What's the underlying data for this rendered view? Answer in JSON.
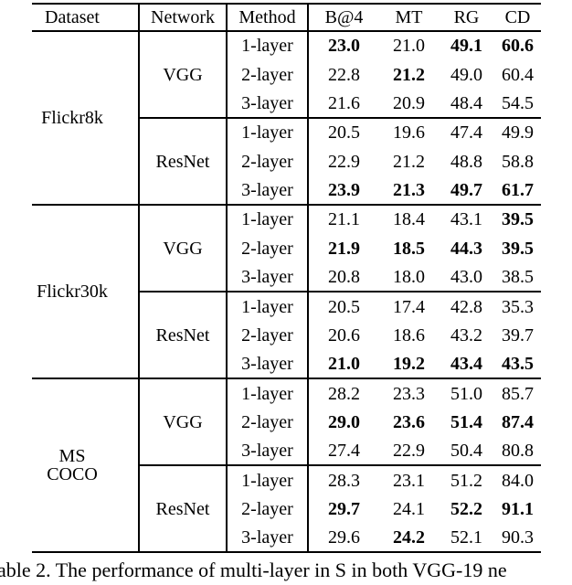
{
  "caption": "able 2. The performance of multi-layer in S in both VGG-19 ne",
  "table": {
    "headers": [
      "Dataset",
      "Network",
      "Method",
      "B@4",
      "MT",
      "RG",
      "CD"
    ],
    "groups": [
      {
        "dataset": "Flickr8k",
        "networks": [
          {
            "name": "VGG",
            "rows": [
              {
                "method": "1-layer",
                "values": [
                  "23.0",
                  "21.0",
                  "49.1",
                  "60.6"
                ],
                "bold": [
                  1,
                  0,
                  1,
                  1
                ]
              },
              {
                "method": "2-layer",
                "values": [
                  "22.8",
                  "21.2",
                  "49.0",
                  "60.4"
                ],
                "bold": [
                  0,
                  1,
                  0,
                  0
                ]
              },
              {
                "method": "3-layer",
                "values": [
                  "21.6",
                  "20.9",
                  "48.4",
                  "54.5"
                ],
                "bold": [
                  0,
                  0,
                  0,
                  0
                ]
              }
            ]
          },
          {
            "name": "ResNet",
            "rows": [
              {
                "method": "1-layer",
                "values": [
                  "20.5",
                  "19.6",
                  "47.4",
                  "49.9"
                ],
                "bold": [
                  0,
                  0,
                  0,
                  0
                ]
              },
              {
                "method": "2-layer",
                "values": [
                  "22.9",
                  "21.2",
                  "48.8",
                  "58.8"
                ],
                "bold": [
                  0,
                  0,
                  0,
                  0
                ]
              },
              {
                "method": "3-layer",
                "values": [
                  "23.9",
                  "21.3",
                  "49.7",
                  "61.7"
                ],
                "bold": [
                  1,
                  1,
                  1,
                  1
                ]
              }
            ]
          }
        ]
      },
      {
        "dataset": "Flickr30k",
        "networks": [
          {
            "name": "VGG",
            "rows": [
              {
                "method": "1-layer",
                "values": [
                  "21.1",
                  "18.4",
                  "43.1",
                  "39.5"
                ],
                "bold": [
                  0,
                  0,
                  0,
                  1
                ]
              },
              {
                "method": "2-layer",
                "values": [
                  "21.9",
                  "18.5",
                  "44.3",
                  "39.5"
                ],
                "bold": [
                  1,
                  1,
                  1,
                  1
                ]
              },
              {
                "method": "3-layer",
                "values": [
                  "20.8",
                  "18.0",
                  "43.0",
                  "38.5"
                ],
                "bold": [
                  0,
                  0,
                  0,
                  0
                ]
              }
            ]
          },
          {
            "name": "ResNet",
            "rows": [
              {
                "method": "1-layer",
                "values": [
                  "20.5",
                  "17.4",
                  "42.8",
                  "35.3"
                ],
                "bold": [
                  0,
                  0,
                  0,
                  0
                ]
              },
              {
                "method": "2-layer",
                "values": [
                  "20.6",
                  "18.6",
                  "43.2",
                  "39.7"
                ],
                "bold": [
                  0,
                  0,
                  0,
                  0
                ]
              },
              {
                "method": "3-layer",
                "values": [
                  "21.0",
                  "19.2",
                  "43.4",
                  "43.5"
                ],
                "bold": [
                  1,
                  1,
                  1,
                  1
                ]
              }
            ]
          }
        ]
      },
      {
        "dataset": "MS COCO",
        "networks": [
          {
            "name": "VGG",
            "rows": [
              {
                "method": "1-layer",
                "values": [
                  "28.2",
                  "23.3",
                  "51.0",
                  "85.7"
                ],
                "bold": [
                  0,
                  0,
                  0,
                  0
                ]
              },
              {
                "method": "2-layer",
                "values": [
                  "29.0",
                  "23.6",
                  "51.4",
                  "87.4"
                ],
                "bold": [
                  1,
                  1,
                  1,
                  1
                ]
              },
              {
                "method": "3-layer",
                "values": [
                  "27.4",
                  "22.9",
                  "50.4",
                  "80.8"
                ],
                "bold": [
                  0,
                  0,
                  0,
                  0
                ]
              }
            ]
          },
          {
            "name": "ResNet",
            "rows": [
              {
                "method": "1-layer",
                "values": [
                  "28.3",
                  "23.1",
                  "51.2",
                  "84.0"
                ],
                "bold": [
                  0,
                  0,
                  0,
                  0
                ]
              },
              {
                "method": "2-layer",
                "values": [
                  "29.7",
                  "24.1",
                  "52.2",
                  "91.1"
                ],
                "bold": [
                  1,
                  0,
                  1,
                  1
                ]
              },
              {
                "method": "3-layer",
                "values": [
                  "29.6",
                  "24.2",
                  "52.1",
                  "90.3"
                ],
                "bold": [
                  0,
                  1,
                  0,
                  0
                ]
              }
            ]
          }
        ]
      }
    ]
  }
}
